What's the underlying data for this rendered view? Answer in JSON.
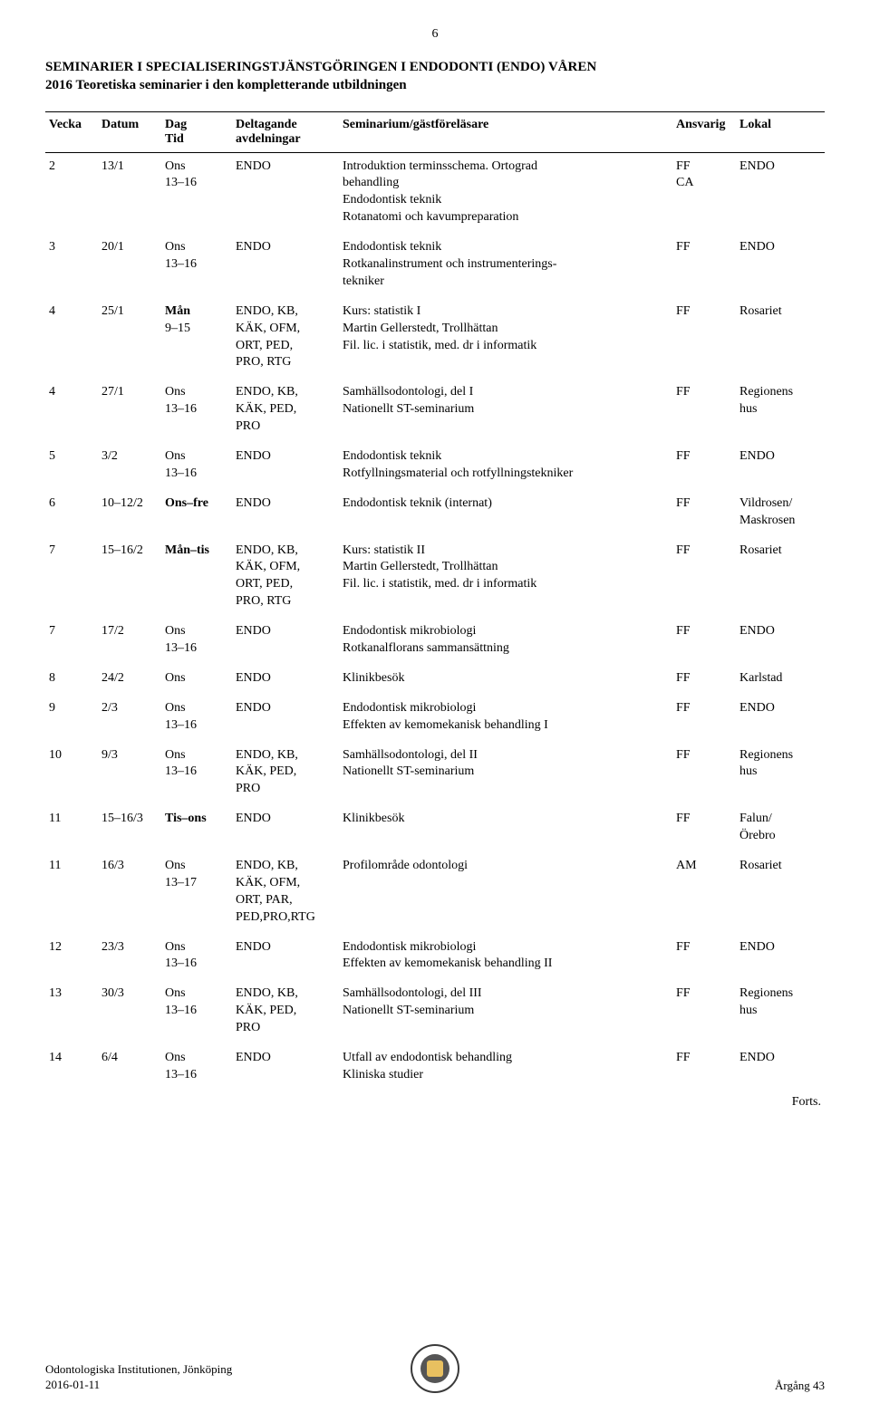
{
  "pageNumber": "6",
  "title_line1": "SEMINARIER I SPECIALISERINGSTJÄNSTGÖRINGEN I ENDODONTI (ENDO) VÅREN",
  "title_line2": "2016 Teoretiska seminarier i den kompletterande utbildningen",
  "headers": {
    "vecka": "Vecka",
    "datum": "Datum",
    "dag_l1": "Dag",
    "dag_l2": "Tid",
    "avd_l1": "Deltagande",
    "avd_l2": "avdelningar",
    "sem": "Seminarium/gästföreläsare",
    "ansvarig": "Ansvarig",
    "lokal": "Lokal"
  },
  "rows": [
    {
      "vecka": "2",
      "datum": "13/1",
      "dag_l1": "Ons",
      "dag_l2": "13–16",
      "avd": "ENDO",
      "sem_l1": "Introduktion terminsschema. Ortograd",
      "sem_l2": "behandling",
      "sem_l3": "Endodontisk teknik",
      "sem_l4": "Rotanatomi och kavumpreparation",
      "ansv_l1": "FF",
      "ansv_l2": "",
      "ansv_l3": "CA",
      "lokal": "ENDO"
    },
    {
      "vecka": "3",
      "datum": "20/1",
      "dag_l1": "Ons",
      "dag_l2": "13–16",
      "avd": "ENDO",
      "sem_l1": "Endodontisk teknik",
      "sem_l2": "Rotkanalinstrument och instrumenterings-",
      "sem_l3": "tekniker",
      "ansv_l1": "FF",
      "lokal": "ENDO"
    },
    {
      "vecka": "4",
      "datum": "25/1",
      "dag_l1": "Mån",
      "dag_l2": "9–15",
      "avd_l1": "ENDO, KB,",
      "avd_l2": "KÄK, OFM,",
      "avd_l3": "ORT, PED,",
      "avd_l4": "PRO, RTG",
      "sem_l1": "Kurs: statistik I",
      "sem_l2": "Martin Gellerstedt, Trollhättan",
      "sem_l3": "Fil. lic. i statistik, med. dr i informatik",
      "ansv_l1": "FF",
      "lokal": "Rosariet",
      "dag_bold": true
    },
    {
      "vecka": "4",
      "datum": "27/1",
      "dag_l1": "Ons",
      "dag_l2": "13–16",
      "avd_l1": "ENDO, KB,",
      "avd_l2": "KÄK, PED,",
      "avd_l3": "PRO",
      "sem_l1": "Samhällsodontologi, del I",
      "sem_l2": "Nationellt ST-seminarium",
      "ansv_l1": "FF",
      "lokal_l1": "Regionens",
      "lokal_l2": "hus"
    },
    {
      "vecka": "5",
      "datum": "3/2",
      "dag_l1": "Ons",
      "dag_l2": "13–16",
      "avd": "ENDO",
      "sem_l1": "Endodontisk teknik",
      "sem_l2": "Rotfyllningsmaterial och rotfyllningstekniker",
      "ansv_l1": "FF",
      "lokal": "ENDO"
    },
    {
      "vecka": "6",
      "datum": "10–12/2",
      "dag_l1": "Ons–fre",
      "avd": "ENDO",
      "sem_l1": "Endodontisk teknik (internat)",
      "ansv_l1": "FF",
      "lokal_l1": "Vildrosen/",
      "lokal_l2": "Maskrosen",
      "dag_bold": true
    },
    {
      "vecka": "7",
      "datum": "15–16/2",
      "dag_l1": "Mån–tis",
      "avd_l1": "ENDO, KB,",
      "avd_l2": "KÄK, OFM,",
      "avd_l3": "ORT, PED,",
      "avd_l4": "PRO, RTG",
      "sem_l1": "Kurs: statistik II",
      "sem_l2": "Martin Gellerstedt, Trollhättan",
      "sem_l3": "Fil. lic. i statistik, med. dr i informatik",
      "ansv_l1": "FF",
      "lokal": "Rosariet",
      "dag_bold": true
    },
    {
      "vecka": "7",
      "datum": "17/2",
      "dag_l1": "Ons",
      "dag_l2": "13–16",
      "avd": "ENDO",
      "sem_l1": "Endodontisk mikrobiologi",
      "sem_l2": "Rotkanalflorans sammansättning",
      "ansv_l1": "FF",
      "lokal": "ENDO"
    },
    {
      "vecka": "8",
      "datum": "24/2",
      "dag_l1": "Ons",
      "avd": "ENDO",
      "sem_l1": "Klinikbesök",
      "ansv_l1": "FF",
      "lokal": "Karlstad"
    },
    {
      "vecka": "9",
      "datum": "2/3",
      "dag_l1": "Ons",
      "dag_l2": "13–16",
      "avd": "ENDO",
      "sem_l1": "Endodontisk mikrobiologi",
      "sem_l2": "Effekten av kemomekanisk behandling I",
      "ansv_l1": "FF",
      "lokal": "ENDO"
    },
    {
      "vecka": "10",
      "datum": "9/3",
      "dag_l1": "Ons",
      "dag_l2": "13–16",
      "avd_l1": "ENDO, KB,",
      "avd_l2": "KÄK, PED,",
      "avd_l3": "PRO",
      "sem_l1": "Samhällsodontologi, del II",
      "sem_l2": "Nationellt ST-seminarium",
      "ansv_l1": "FF",
      "lokal_l1": "Regionens",
      "lokal_l2": "hus"
    },
    {
      "vecka": "11",
      "datum": "15–16/3",
      "dag_l1": "Tis–ons",
      "avd": "ENDO",
      "sem_l1": "Klinikbesök",
      "ansv_l1": "FF",
      "lokal_l1": "Falun/",
      "lokal_l2": "Örebro",
      "dag_bold": true
    },
    {
      "vecka": "11",
      "datum": "16/3",
      "dag_l1": "Ons",
      "dag_l2": "13–17",
      "avd_l1": "ENDO, KB,",
      "avd_l2": "KÄK, OFM,",
      "avd_l3": "ORT, PAR,",
      "avd_l4": "PED,PRO,RTG",
      "sem_l1": "Profilområde odontologi",
      "ansv_l1": "AM",
      "lokal": "Rosariet"
    },
    {
      "vecka": "12",
      "datum": "23/3",
      "dag_l1": "Ons",
      "dag_l2": "13–16",
      "avd": "ENDO",
      "sem_l1": "Endodontisk mikrobiologi",
      "sem_l2": "Effekten av kemomekanisk behandling II",
      "ansv_l1": "FF",
      "lokal": "ENDO"
    },
    {
      "vecka": "13",
      "datum": "30/3",
      "dag_l1": "Ons",
      "dag_l2": "13–16",
      "avd_l1": "ENDO, KB,",
      "avd_l2": "KÄK, PED,",
      "avd_l3": "PRO",
      "sem_l1": "Samhällsodontologi, del III",
      "sem_l2": "Nationellt ST-seminarium",
      "ansv_l1": "FF",
      "lokal_l1": "Regionens",
      "lokal_l2": "hus"
    },
    {
      "vecka": "14",
      "datum": "6/4",
      "dag_l1": "Ons",
      "dag_l2": "13–16",
      "avd": "ENDO",
      "sem_l1": "Utfall av endodontisk behandling",
      "sem_l2": "Kliniska studier",
      "ansv_l1": "FF",
      "lokal": "ENDO"
    }
  ],
  "forts": "Forts.",
  "footer": {
    "left_l1": "Odontologiska Institutionen, Jönköping",
    "left_l2": "2016-01-11",
    "right": "Årgång 43"
  }
}
